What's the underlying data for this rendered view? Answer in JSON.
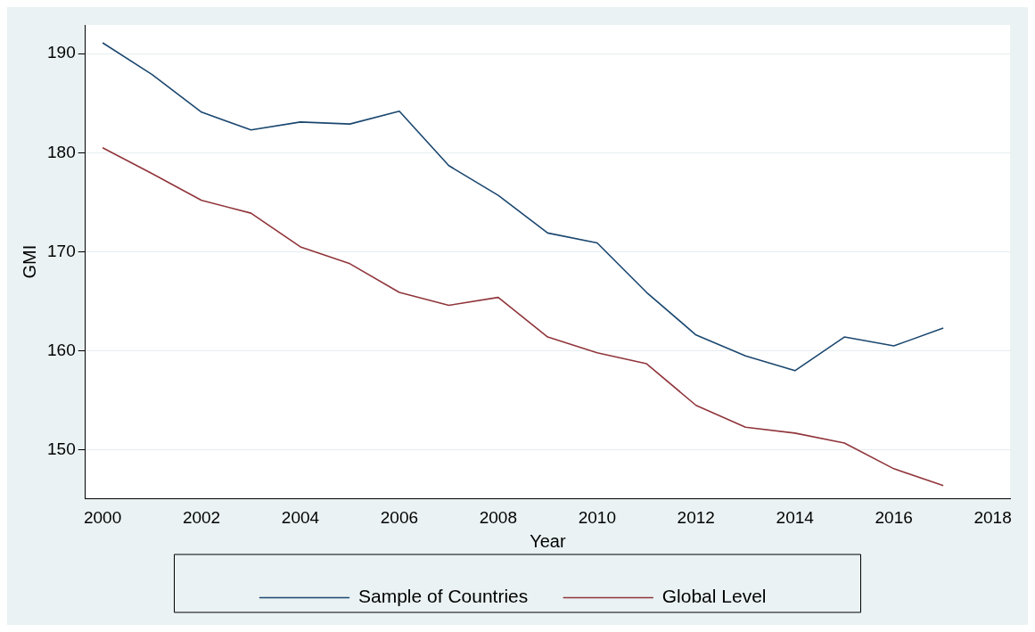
{
  "chart_data": {
    "type": "line",
    "xlabel": "Year",
    "ylabel": "GMI",
    "x": [
      2000,
      2001,
      2002,
      2003,
      2004,
      2005,
      2006,
      2007,
      2008,
      2009,
      2010,
      2011,
      2012,
      2013,
      2014,
      2015,
      2016,
      2017
    ],
    "series": [
      {
        "name": "Sample of Countries",
        "color": "#1a476f",
        "values": [
          191.1,
          187.9,
          184.1,
          182.3,
          183.1,
          182.9,
          184.2,
          178.7,
          175.7,
          171.9,
          170.9,
          165.9,
          161.6,
          159.5,
          158.0,
          161.4,
          160.5,
          162.3
        ]
      },
      {
        "name": "Global Level",
        "color": "#90353b",
        "values": [
          180.5,
          177.9,
          175.2,
          173.9,
          170.5,
          168.8,
          165.9,
          164.6,
          165.4,
          161.4,
          159.8,
          158.7,
          154.5,
          152.3,
          151.7,
          150.7,
          148.1,
          146.4
        ]
      }
    ],
    "xlim": [
      1999.65,
      2018.35
    ],
    "xticks": [
      2000,
      2002,
      2004,
      2006,
      2008,
      2010,
      2012,
      2014,
      2016,
      2018
    ],
    "ylim": [
      145.1,
      192.9
    ],
    "yticks": [
      150,
      160,
      170,
      180,
      190
    ],
    "grid": "y",
    "legend": "bottom",
    "marker": "none",
    "line_style": "solid"
  }
}
